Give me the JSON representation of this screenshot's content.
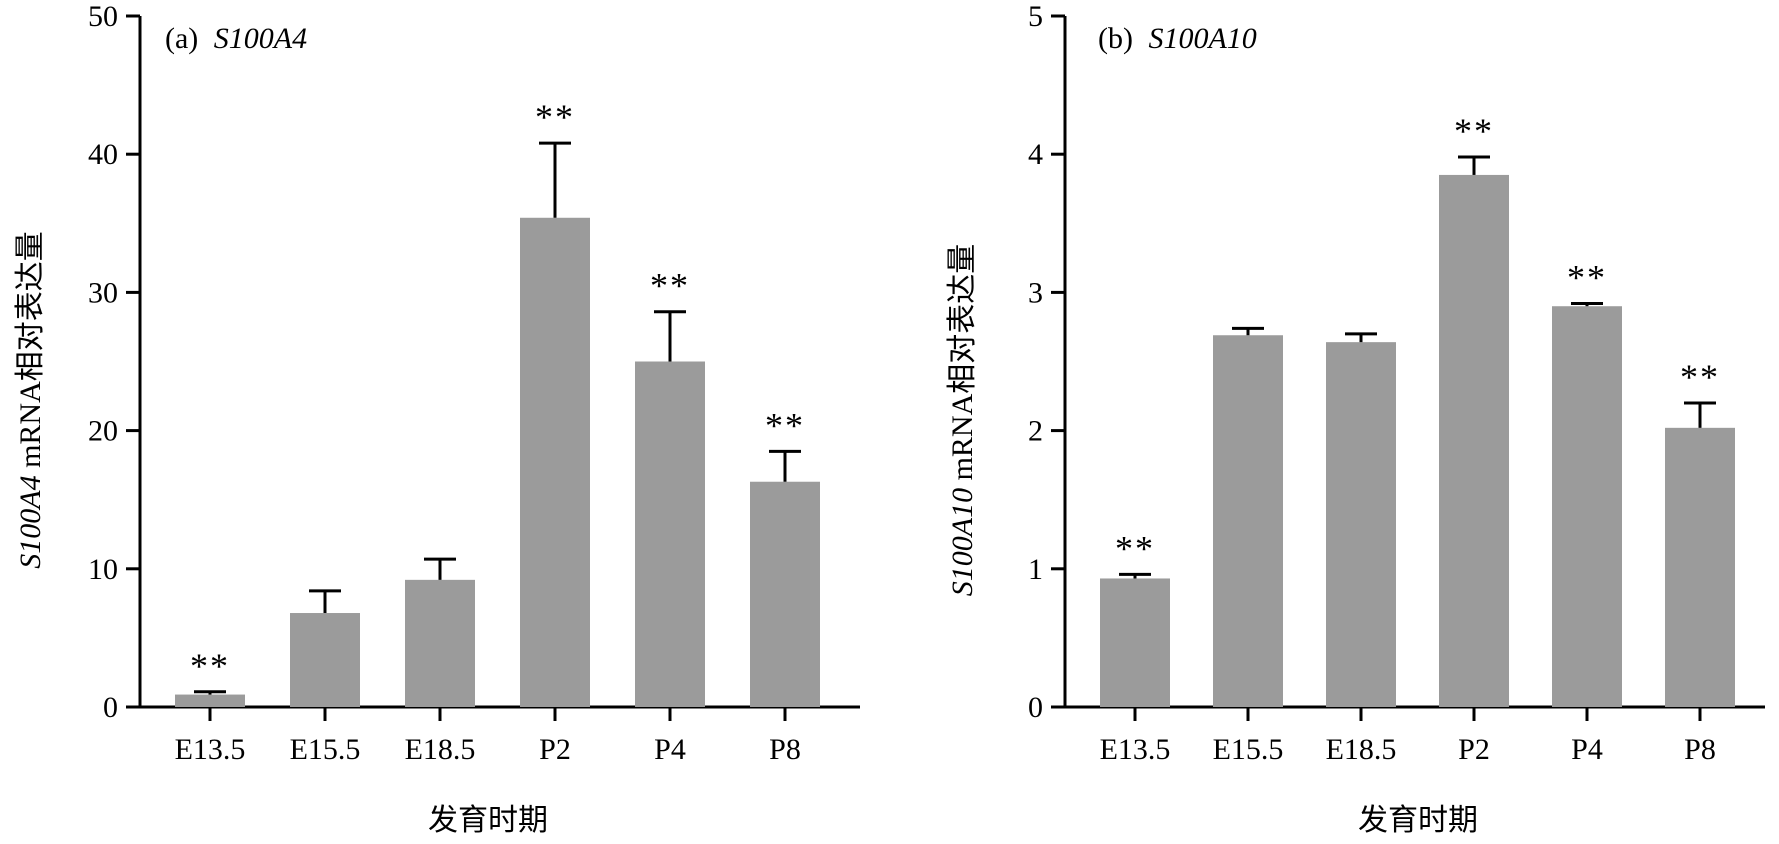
{
  "chart_data": [
    {
      "type": "bar",
      "panel_label": "(a)",
      "gene": "S100A4",
      "ylabel_gene": "S100A4",
      "ylabel_suffix": " mRNA相对表达量",
      "xlabel": "发育时期",
      "categories": [
        "E13.5",
        "E15.5",
        "E18.5",
        "P2",
        "P4",
        "P8"
      ],
      "values": [
        0.9,
        6.8,
        9.2,
        35.4,
        25.0,
        16.3
      ],
      "errors": [
        0.2,
        1.6,
        1.5,
        5.4,
        3.6,
        2.2
      ],
      "significance": [
        "**",
        "",
        "",
        "**",
        "**",
        "**"
      ],
      "ylim": [
        0,
        50
      ],
      "yticks": [
        0,
        10,
        20,
        30,
        40,
        50
      ],
      "bar_color": "#9b9b9b"
    },
    {
      "type": "bar",
      "panel_label": "(b)",
      "gene": "S100A10",
      "ylabel_gene": "S100A10",
      "ylabel_suffix": " mRNA相对表达量",
      "xlabel": "发育时期",
      "categories": [
        "E13.5",
        "E15.5",
        "E18.5",
        "P2",
        "P4",
        "P8"
      ],
      "values": [
        0.93,
        2.69,
        2.64,
        3.85,
        2.9,
        2.02
      ],
      "errors": [
        0.03,
        0.05,
        0.06,
        0.13,
        0.02,
        0.18
      ],
      "significance": [
        "**",
        "",
        "",
        "**",
        "**",
        "**"
      ],
      "ylim": [
        0,
        5
      ],
      "yticks": [
        0,
        1,
        2,
        3,
        4,
        5
      ],
      "bar_color": "#9b9b9b"
    }
  ]
}
